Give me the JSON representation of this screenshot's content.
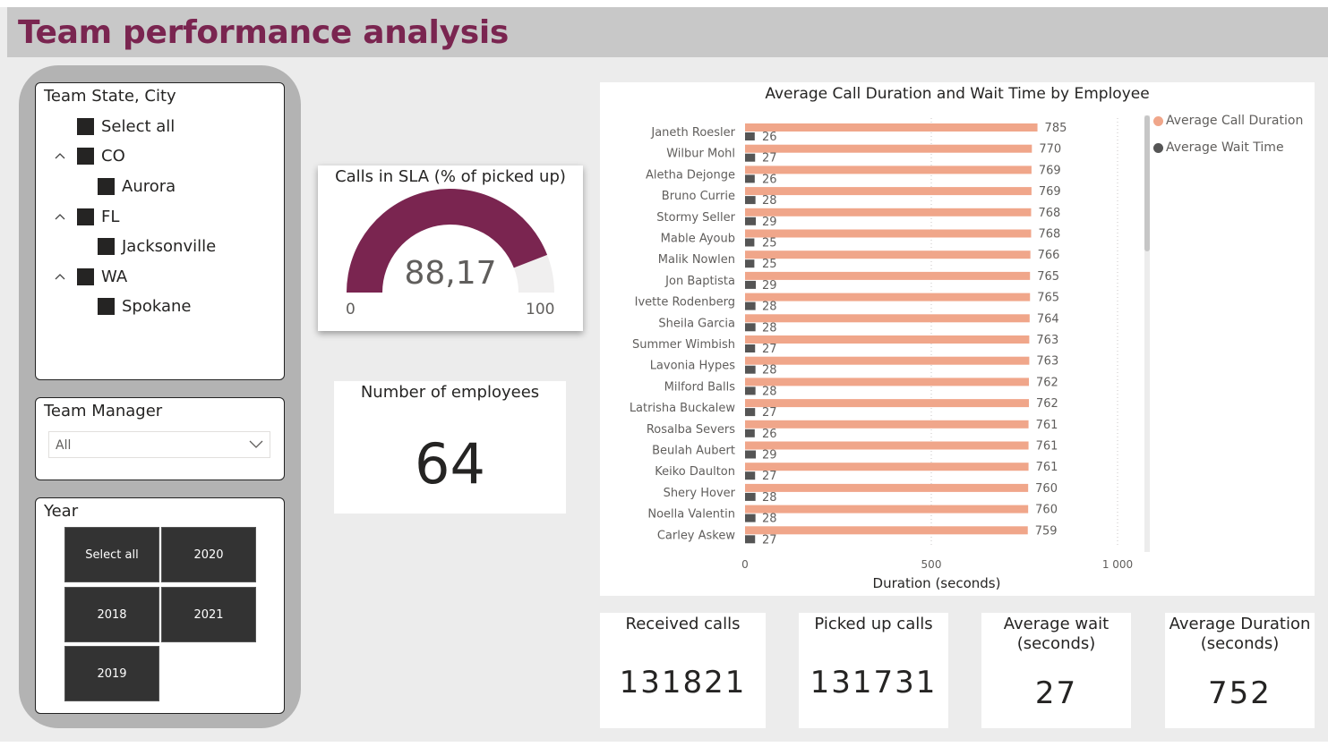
{
  "header": {
    "title": "Team performance analysis"
  },
  "slicers": {
    "state_city": {
      "title": "Team State, City",
      "select_all": "Select all",
      "states": [
        {
          "name": "CO",
          "cities": [
            "Aurora"
          ]
        },
        {
          "name": "FL",
          "cities": [
            "Jacksonville"
          ]
        },
        {
          "name": "WA",
          "cities": [
            "Spokane"
          ]
        }
      ]
    },
    "manager": {
      "title": "Team Manager",
      "selected": "All"
    },
    "year": {
      "title": "Year",
      "buttons": [
        "Select all",
        "2020",
        "2018",
        "2021",
        "2019"
      ]
    }
  },
  "gauge": {
    "title": "Calls in SLA (% of picked up)",
    "value": 88.17,
    "value_label": "88,17",
    "min": "0",
    "max": "100",
    "colors": {
      "fill": "#7a2550",
      "empty": "#f0efef"
    }
  },
  "kpis": {
    "employees": {
      "title": "Number of employees",
      "value": "64"
    },
    "received": {
      "title": "Received calls",
      "value": "131821"
    },
    "picked": {
      "title": "Picked up calls",
      "value": "131731"
    },
    "avg_wait": {
      "title_line1": "Average wait",
      "title_line2": "(seconds)",
      "value": "27"
    },
    "avg_duration": {
      "title_line1": "Average Duration",
      "title_line2": "(seconds)",
      "value": "752"
    }
  },
  "chart_data": {
    "type": "bar",
    "orientation": "horizontal",
    "title": "Average Call Duration and Wait Time by Employee",
    "xlabel": "Duration (seconds)",
    "xlim": [
      0,
      1000
    ],
    "xticks": [
      "0",
      "500",
      "1 000"
    ],
    "xtick_values": [
      0,
      500,
      1000
    ],
    "grid": true,
    "legend": "right",
    "categories": [
      "Janeth Roesler",
      "Wilbur Mohl",
      "Aletha Dejonge",
      "Bruno Currie",
      "Stormy Seller",
      "Mable Ayoub",
      "Malik Nowlen",
      "Jon Baptista",
      "Ivette Rodenberg",
      "Sheila Garcia",
      "Summer Wimbish",
      "Lavonia Hypes",
      "Milford Balls",
      "Latrisha Buckalew",
      "Rosalba Severs",
      "Beulah Aubert",
      "Keiko Daulton",
      "Shery Hover",
      "Noella Valentin",
      "Carley Askew"
    ],
    "series": [
      {
        "name": "Average Call Duration",
        "color": "#f0a68a",
        "values": [
          785,
          770,
          769,
          769,
          768,
          768,
          766,
          765,
          765,
          764,
          763,
          763,
          762,
          762,
          761,
          761,
          761,
          760,
          760,
          759
        ]
      },
      {
        "name": "Average Wait Time",
        "color": "#555555",
        "values": [
          26,
          27,
          26,
          28,
          29,
          25,
          25,
          29,
          28,
          28,
          27,
          28,
          28,
          27,
          26,
          29,
          27,
          28,
          28,
          27
        ]
      }
    ]
  }
}
